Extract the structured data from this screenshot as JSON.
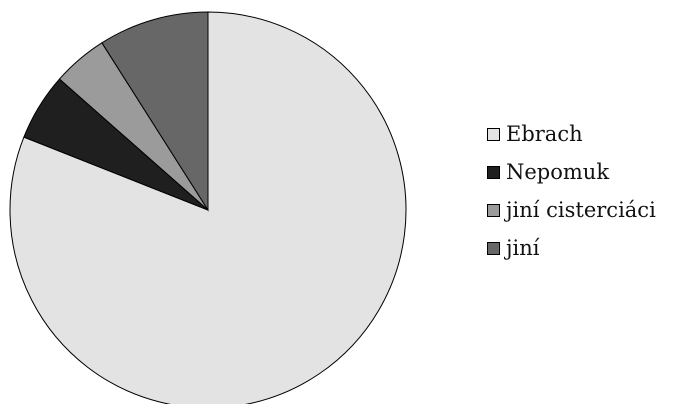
{
  "chart_data": {
    "type": "pie",
    "title": "",
    "slices": [
      {
        "label": "Ebrach",
        "value": 81,
        "color": "#e3e3e3"
      },
      {
        "label": "Nepomuk",
        "value": 5.5,
        "color": "#1f1f1f"
      },
      {
        "label": "jiní cisterciáci",
        "value": 4.5,
        "color": "#9b9b9b"
      },
      {
        "label": "jiní",
        "value": 9,
        "color": "#676767"
      }
    ],
    "start": "12 o'clock",
    "direction": "clockwise",
    "legend_position": "right"
  }
}
